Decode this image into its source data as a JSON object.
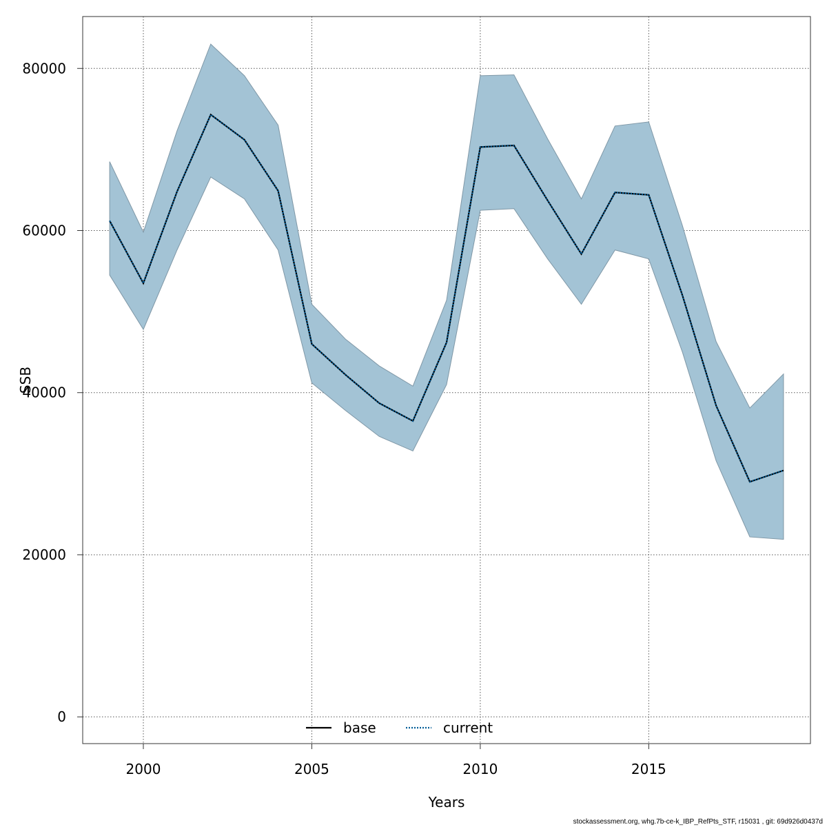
{
  "chart_data": {
    "type": "area",
    "xlabel": "Years",
    "ylabel": "SSB",
    "xlim": [
      1998.2,
      2019.8
    ],
    "ylim": [
      -3300,
      86400
    ],
    "x_ticks": [
      2000,
      2005,
      2010,
      2015
    ],
    "y_ticks": [
      0,
      20000,
      40000,
      60000,
      80000
    ],
    "grid": true,
    "legend_position": "bottom-center",
    "legend": [
      {
        "label": "base",
        "style": "solid",
        "color": "#000000"
      },
      {
        "label": "current",
        "style": "dotted",
        "color": "#005b96"
      }
    ],
    "band_color": "#a3c3d5",
    "band_edge_color": "#7f97a6",
    "x": [
      1999,
      2000,
      2001,
      2002,
      2003,
      2004,
      2005,
      2006,
      2007,
      2008,
      2009,
      2010,
      2011,
      2012,
      2013,
      2014,
      2015,
      2016,
      2017,
      2018,
      2019
    ],
    "series": [
      {
        "name": "current",
        "role": "estimate",
        "values": [
          61200,
          53500,
          64800,
          74300,
          71200,
          64900,
          46000,
          42200,
          38700,
          36500,
          46200,
          70300,
          70500,
          63700,
          57100,
          64700,
          64400,
          52000,
          38400,
          29000,
          30400
        ]
      },
      {
        "role": "upper",
        "values": [
          68500,
          59800,
          72300,
          83000,
          79100,
          73000,
          50900,
          46600,
          43300,
          40800,
          51400,
          79100,
          79200,
          71300,
          63900,
          72900,
          73400,
          60600,
          46300,
          38100,
          42300
        ]
      },
      {
        "role": "lower",
        "values": [
          54500,
          47800,
          57600,
          66600,
          63900,
          57600,
          41200,
          37800,
          34600,
          32800,
          41000,
          62500,
          62700,
          56500,
          50900,
          57600,
          56500,
          45000,
          31600,
          22200,
          21900
        ]
      }
    ]
  },
  "footer": "stockassessment.org, whg.7b-ce-k_IBP_RefPts_STF, r15031 , git: 69d926d0437d"
}
